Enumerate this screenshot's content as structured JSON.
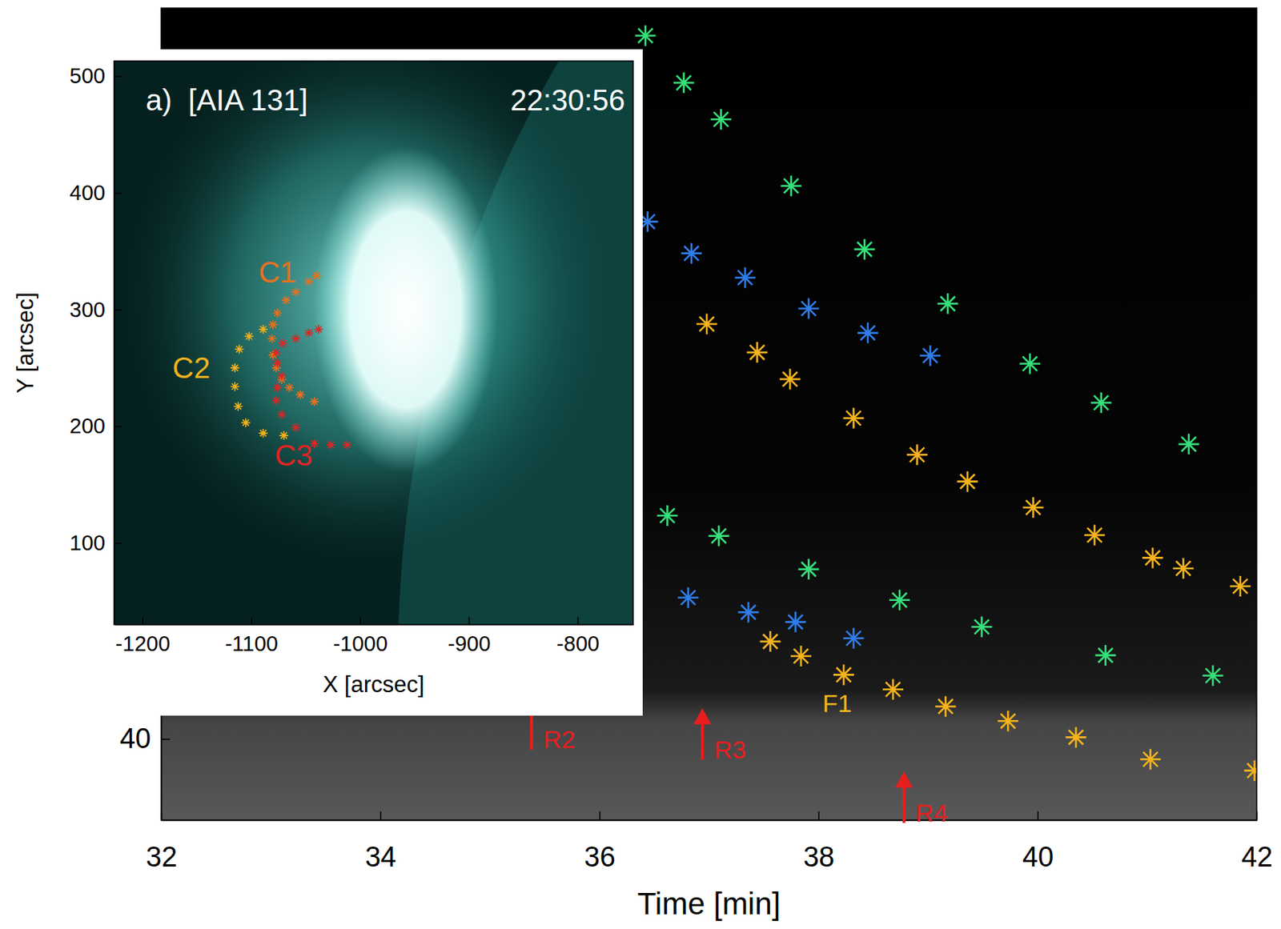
{
  "chart_data": [
    {
      "type": "scatter",
      "x_label": "Time [min]",
      "xlim": [
        32,
        42
      ],
      "xticks": [
        32,
        34,
        36,
        38,
        40,
        42
      ],
      "ylim": [
        30,
        130
      ],
      "yticks": [
        40
      ],
      "grid": false,
      "marker": "asterisk",
      "series": [
        {
          "color": "#35e07a",
          "x": [
            36.42,
            36.77,
            37.11,
            37.75,
            38.42,
            39.18,
            39.93,
            40.58,
            41.38
          ],
          "values": [
            126.6,
            120.8,
            116.3,
            108.1,
            100.3,
            93.6,
            86.2,
            81.4,
            76.3
          ]
        },
        {
          "color": "#2f7de8",
          "x": [
            36.44,
            36.84,
            37.33,
            37.91,
            38.45,
            39.02
          ],
          "values": [
            103.7,
            99.8,
            96.8,
            93.0,
            90.0,
            87.2
          ]
        },
        {
          "color": "#f5b31c",
          "x": [
            36.98,
            37.44,
            37.74,
            38.32,
            38.9,
            39.36,
            39.96,
            40.52,
            41.05,
            41.33,
            41.85
          ],
          "values": [
            91.1,
            87.6,
            84.3,
            79.5,
            75.0,
            71.7,
            68.5,
            65.1,
            62.3,
            61.0,
            58.8
          ]
        },
        {
          "color": "#35e07a",
          "x": [
            36.62,
            37.09,
            37.91,
            38.74,
            39.49,
            40.62,
            41.6
          ],
          "values": [
            67.5,
            65.0,
            60.9,
            57.1,
            53.8,
            50.3,
            47.8
          ]
        },
        {
          "color": "#2f7de8",
          "x": [
            36.81,
            37.36,
            37.79,
            38.32
          ],
          "values": [
            57.4,
            55.6,
            54.4,
            52.4
          ]
        },
        {
          "color": "#f5b31c",
          "x": [
            37.56,
            37.84,
            38.23,
            38.68,
            39.16,
            39.73,
            40.35,
            41.03,
            41.98
          ],
          "values": [
            52.0,
            50.2,
            47.9,
            46.1,
            44.0,
            42.2,
            40.2,
            37.5,
            36.1
          ]
        }
      ],
      "annotations": [
        {
          "text": "F1",
          "x": 38.17,
          "y": 44.4,
          "color": "#f5b31c"
        }
      ],
      "arrows": [
        {
          "text": "R2",
          "x": 35.38,
          "y": 45.0,
          "color": "#e81e1e"
        },
        {
          "text": "R3",
          "x": 36.94,
          "y": 43.8,
          "color": "#e81e1e"
        },
        {
          "text": "R4",
          "x": 38.78,
          "y": 36.0,
          "color": "#e81e1e"
        }
      ]
    },
    {
      "type": "scatter",
      "title": "a)  [AIA 131]",
      "subtitle": "22:30:56",
      "x_label": "X [arcsec]",
      "y_label": "Y [arcsec]",
      "xlim": [
        -1226,
        -749
      ],
      "xticks": [
        -1200,
        -1100,
        -1000,
        -900,
        -800
      ],
      "ylim": [
        30,
        513
      ],
      "yticks": [
        100,
        200,
        300,
        400,
        500
      ],
      "grid": false,
      "marker": "asterisk",
      "series": [
        {
          "color": "#e8701e",
          "x": [
            -1040,
            -1047,
            -1059,
            -1068,
            -1076,
            -1080,
            -1081,
            -1080,
            -1077,
            -1072,
            -1065,
            -1055,
            -1042
          ],
          "values": [
            329,
            324,
            315,
            308,
            297,
            287,
            275,
            261,
            250,
            240,
            233,
            227,
            221
          ]
        },
        {
          "color": "#f2b21c",
          "x": [
            -1089,
            -1102,
            -1111,
            -1115,
            -1115,
            -1112,
            -1105,
            -1089,
            -1070
          ],
          "values": [
            283,
            277,
            266,
            250,
            234,
            217,
            203,
            194,
            192
          ]
        },
        {
          "color": "#e02424",
          "x": [
            -1038,
            -1047,
            -1059,
            -1071,
            -1077,
            -1076,
            -1072,
            -1076,
            -1077,
            -1072,
            -1059,
            -1042,
            -1027,
            -1012
          ],
          "values": [
            283,
            280,
            275,
            271,
            263,
            254,
            243,
            233,
            222,
            210,
            199,
            185,
            184,
            184
          ]
        }
      ],
      "annotations": [
        {
          "text": "C1",
          "x": -1076,
          "y": 332,
          "color": "#e8701e"
        },
        {
          "text": "C2",
          "x": -1155,
          "y": 250,
          "color": "#f2b21c"
        },
        {
          "text": "C3",
          "x": -1061,
          "y": 175,
          "color": "#e02424"
        }
      ]
    }
  ]
}
